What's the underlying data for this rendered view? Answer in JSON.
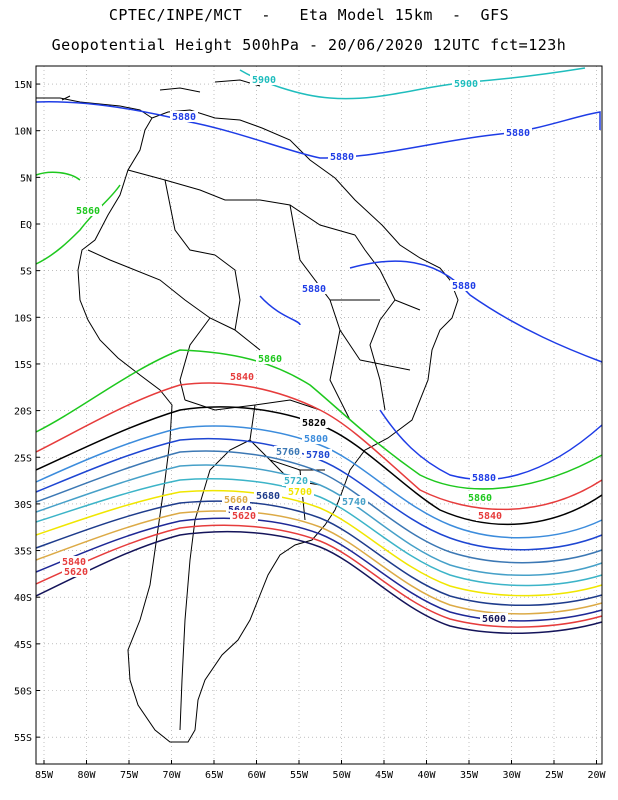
{
  "title_line1": "CPTEC/INPE/MCT  -   Eta Model 15km  -  GFS",
  "title_line2": "Geopotential Height 500hPa - 20/06/2020 12UTC fct=123h",
  "map": {
    "lat_labels": [
      "15N",
      "10N",
      "5N",
      "EQ",
      "5S",
      "10S",
      "15S",
      "20S",
      "25S",
      "30S",
      "35S",
      "40S",
      "45S",
      "50S",
      "55S"
    ],
    "lon_labels": [
      "85W",
      "80W",
      "75W",
      "70W",
      "65W",
      "60W",
      "55W",
      "50W",
      "45W",
      "40W",
      "35W",
      "30W",
      "25W",
      "20W"
    ],
    "lon_range": [
      -86,
      -20
    ],
    "lat_range": [
      -58,
      17
    ],
    "contours": [
      {
        "value": "5900",
        "color": "#1fbdbd"
      },
      {
        "value": "5880",
        "color": "#1e3ce6"
      },
      {
        "value": "5860",
        "color": "#1ec81e"
      },
      {
        "value": "5840",
        "color": "#e63c3c"
      },
      {
        "value": "5820",
        "color": "#000000"
      },
      {
        "value": "5800",
        "color": "#3c8cdc"
      },
      {
        "value": "5780",
        "color": "#1e46d2"
      },
      {
        "value": "5760",
        "color": "#3c78b4"
      },
      {
        "value": "5740",
        "color": "#46a0c8"
      },
      {
        "value": "5720",
        "color": "#3cb4c8"
      },
      {
        "value": "5700",
        "color": "#f0e600"
      },
      {
        "value": "5680",
        "color": "#1e3c8c"
      },
      {
        "value": "5660",
        "color": "#dcaa46"
      },
      {
        "value": "5640",
        "color": "#1e2896"
      },
      {
        "value": "5620",
        "color": "#e63c3c"
      },
      {
        "value": "5600",
        "color": "#14145a"
      }
    ]
  }
}
